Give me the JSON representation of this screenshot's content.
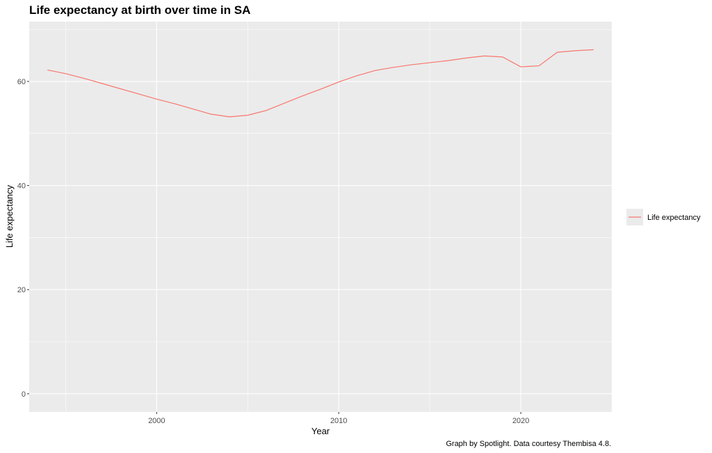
{
  "chart_data": {
    "type": "line",
    "title": "Life expectancy at birth over time in SA",
    "xlabel": "Year",
    "ylabel": "Life expectancy",
    "caption": "Graph by Spotlight. Data courtesy Thembisa 4.8.",
    "xlim": [
      1993,
      2025
    ],
    "ylim": [
      -3.5,
      71.5
    ],
    "x_ticks": [
      2000,
      2010,
      2020
    ],
    "x_minor_ticks": [
      1995,
      2005,
      2015,
      2025
    ],
    "y_ticks": [
      0,
      20,
      40,
      60
    ],
    "y_minor_ticks": [
      10,
      30,
      50,
      70
    ],
    "grid": true,
    "legend_position": "right",
    "series": [
      {
        "name": "Life expectancy",
        "color": "#f8766d",
        "x": [
          1994,
          1995,
          1996,
          1997,
          1998,
          1999,
          2000,
          2001,
          2002,
          2003,
          2004,
          2005,
          2006,
          2007,
          2008,
          2009,
          2010,
          2011,
          2012,
          2013,
          2014,
          2015,
          2016,
          2017,
          2018,
          2019,
          2020,
          2021,
          2022,
          2023,
          2024
        ],
        "y": [
          62.2,
          61.5,
          60.6,
          59.6,
          58.6,
          57.6,
          56.6,
          55.7,
          54.7,
          53.7,
          53.2,
          53.5,
          54.4,
          55.8,
          57.2,
          58.5,
          59.9,
          61.1,
          62.1,
          62.7,
          63.2,
          63.6,
          64.0,
          64.5,
          64.9,
          64.7,
          62.8,
          63.0,
          65.6,
          65.9,
          66.1
        ]
      }
    ]
  }
}
